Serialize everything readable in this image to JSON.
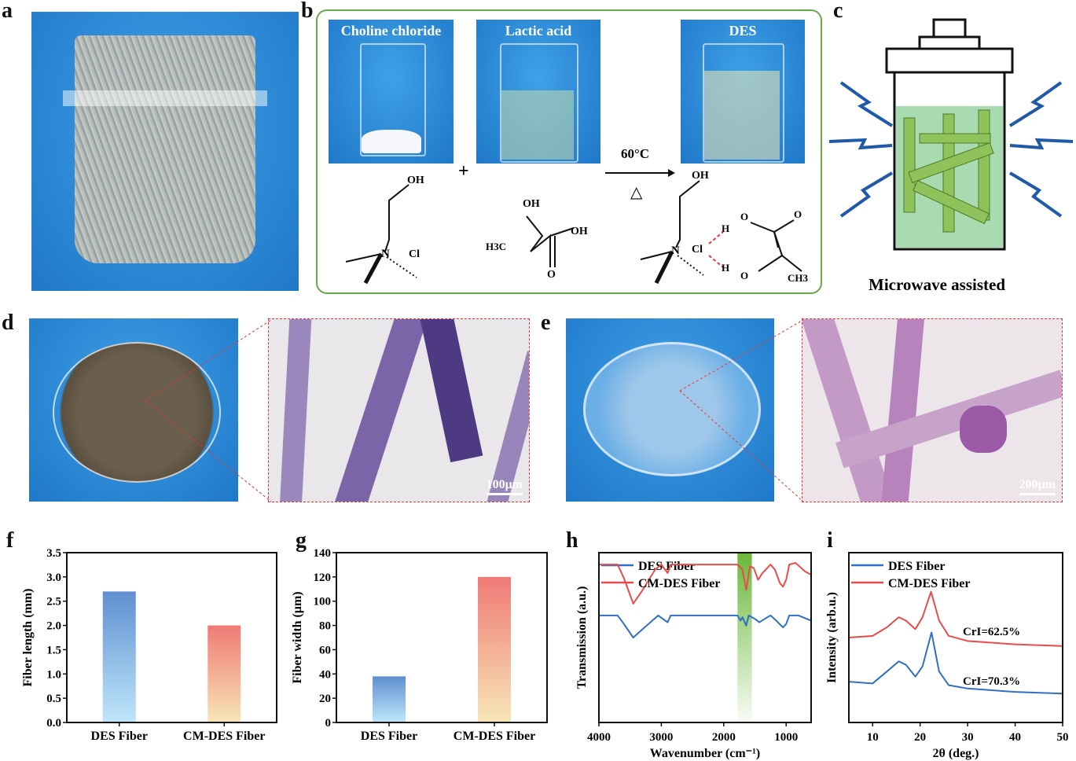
{
  "panels": {
    "a": "a",
    "b": "b",
    "c": "c",
    "d": "d",
    "e": "e",
    "f": "f",
    "g": "g",
    "h": "h",
    "i": "i"
  },
  "b": {
    "photo_labels": [
      "Choline chloride",
      "Lactic acid",
      "DES"
    ],
    "plus": "+",
    "condition": "60°C",
    "heat_symbol": "△",
    "chem": {
      "oh": "OH",
      "n": "N",
      "cl": "Cl",
      "h3c": "H3C",
      "o": "O",
      "h": "H",
      "ch3": "CH3"
    }
  },
  "c": {
    "caption": "Microwave assisted"
  },
  "d": {
    "scale": "100μm"
  },
  "e": {
    "scale": "200μm"
  },
  "colors": {
    "blue": "#2f6fc4",
    "red": "#ec4b4b",
    "green": "#6ab83a",
    "frame_green": "#6aa84f"
  },
  "chart_data": [
    {
      "id": "f",
      "type": "bar",
      "categories": [
        "DES Fiber",
        "CM-DES Fiber"
      ],
      "values": [
        2.7,
        2.0
      ],
      "ylabel": "Fiber length (mm)",
      "xlabel": "",
      "ylim": [
        0,
        3.5
      ],
      "yticks": [
        "0.0",
        "0.5",
        "1.0",
        "1.5",
        "2.0",
        "2.5",
        "3.0",
        "3.5"
      ]
    },
    {
      "id": "g",
      "type": "bar",
      "categories": [
        "DES Fiber",
        "CM-DES Fiber"
      ],
      "values": [
        38,
        120
      ],
      "ylabel": "Fiber width (μm)",
      "xlabel": "",
      "ylim": [
        0,
        140
      ],
      "yticks": [
        "0",
        "20",
        "40",
        "60",
        "80",
        "100",
        "120",
        "140"
      ]
    },
    {
      "id": "h",
      "type": "line",
      "xlabel": "Wavenumber (cm⁻¹)",
      "ylabel": "Transmission (a.u.)",
      "xlim": [
        4000,
        600
      ],
      "ylim": [
        0,
        1
      ],
      "xticks": [
        "4000",
        "3000",
        "2000",
        "1000"
      ],
      "highlight_band": [
        1780,
        1550
      ],
      "legend": "top-left",
      "series": [
        {
          "name": "DES Fiber",
          "color": "#2f6fc4",
          "points": [
            [
              4000,
              0.63
            ],
            [
              3700,
              0.63
            ],
            [
              3600,
              0.58
            ],
            [
              3450,
              0.5
            ],
            [
              3300,
              0.55
            ],
            [
              3050,
              0.63
            ],
            [
              2900,
              0.59
            ],
            [
              2850,
              0.63
            ],
            [
              1780,
              0.63
            ],
            [
              1730,
              0.6
            ],
            [
              1700,
              0.62
            ],
            [
              1640,
              0.57
            ],
            [
              1600,
              0.63
            ],
            [
              1500,
              0.61
            ],
            [
              1430,
              0.59
            ],
            [
              1300,
              0.62
            ],
            [
              1250,
              0.63
            ],
            [
              1160,
              0.6
            ],
            [
              1050,
              0.56
            ],
            [
              1000,
              0.58
            ],
            [
              950,
              0.63
            ],
            [
              800,
              0.63
            ],
            [
              600,
              0.6
            ]
          ]
        },
        {
          "name": "CM-DES Fiber",
          "color": "#ec4b4b",
          "points": [
            [
              4000,
              0.93
            ],
            [
              3700,
              0.93
            ],
            [
              3600,
              0.85
            ],
            [
              3450,
              0.7
            ],
            [
              3300,
              0.78
            ],
            [
              3100,
              0.9
            ],
            [
              3000,
              0.93
            ],
            [
              2900,
              0.88
            ],
            [
              2850,
              0.93
            ],
            [
              1780,
              0.93
            ],
            [
              1700,
              0.9
            ],
            [
              1640,
              0.78
            ],
            [
              1580,
              0.92
            ],
            [
              1520,
              0.91
            ],
            [
              1450,
              0.84
            ],
            [
              1380,
              0.88
            ],
            [
              1250,
              0.93
            ],
            [
              1180,
              0.9
            ],
            [
              1100,
              0.82
            ],
            [
              1050,
              0.8
            ],
            [
              1000,
              0.84
            ],
            [
              950,
              0.93
            ],
            [
              850,
              0.94
            ],
            [
              700,
              0.89
            ],
            [
              600,
              0.87
            ]
          ]
        }
      ]
    },
    {
      "id": "i",
      "type": "line",
      "xlabel": "2θ (deg.)",
      "ylabel": "Intensity (arb.u.)",
      "xlim": [
        5,
        50
      ],
      "ylim": [
        0,
        1
      ],
      "xticks": [
        "10",
        "20",
        "30",
        "40",
        "50"
      ],
      "legend": "top-left",
      "annotations": [
        "CrI=62.5%",
        "CrI=70.3%"
      ],
      "series": [
        {
          "name": "DES Fiber",
          "color": "#2f6fc4",
          "points": [
            [
              5,
              0.24
            ],
            [
              10,
              0.23
            ],
            [
              13,
              0.3
            ],
            [
              15.5,
              0.36
            ],
            [
              17,
              0.34
            ],
            [
              19,
              0.27
            ],
            [
              20.5,
              0.33
            ],
            [
              22.4,
              0.53
            ],
            [
              24,
              0.3
            ],
            [
              26,
              0.22
            ],
            [
              30,
              0.2
            ],
            [
              40,
              0.18
            ],
            [
              50,
              0.17
            ]
          ]
        },
        {
          "name": "CM-DES Fiber",
          "color": "#ec4b4b",
          "points": [
            [
              5,
              0.5
            ],
            [
              10,
              0.51
            ],
            [
              13,
              0.56
            ],
            [
              15.5,
              0.62
            ],
            [
              17,
              0.6
            ],
            [
              19,
              0.55
            ],
            [
              20.5,
              0.62
            ],
            [
              22.3,
              0.77
            ],
            [
              24,
              0.6
            ],
            [
              26,
              0.51
            ],
            [
              30,
              0.48
            ],
            [
              40,
              0.46
            ],
            [
              50,
              0.45
            ]
          ]
        }
      ]
    }
  ]
}
